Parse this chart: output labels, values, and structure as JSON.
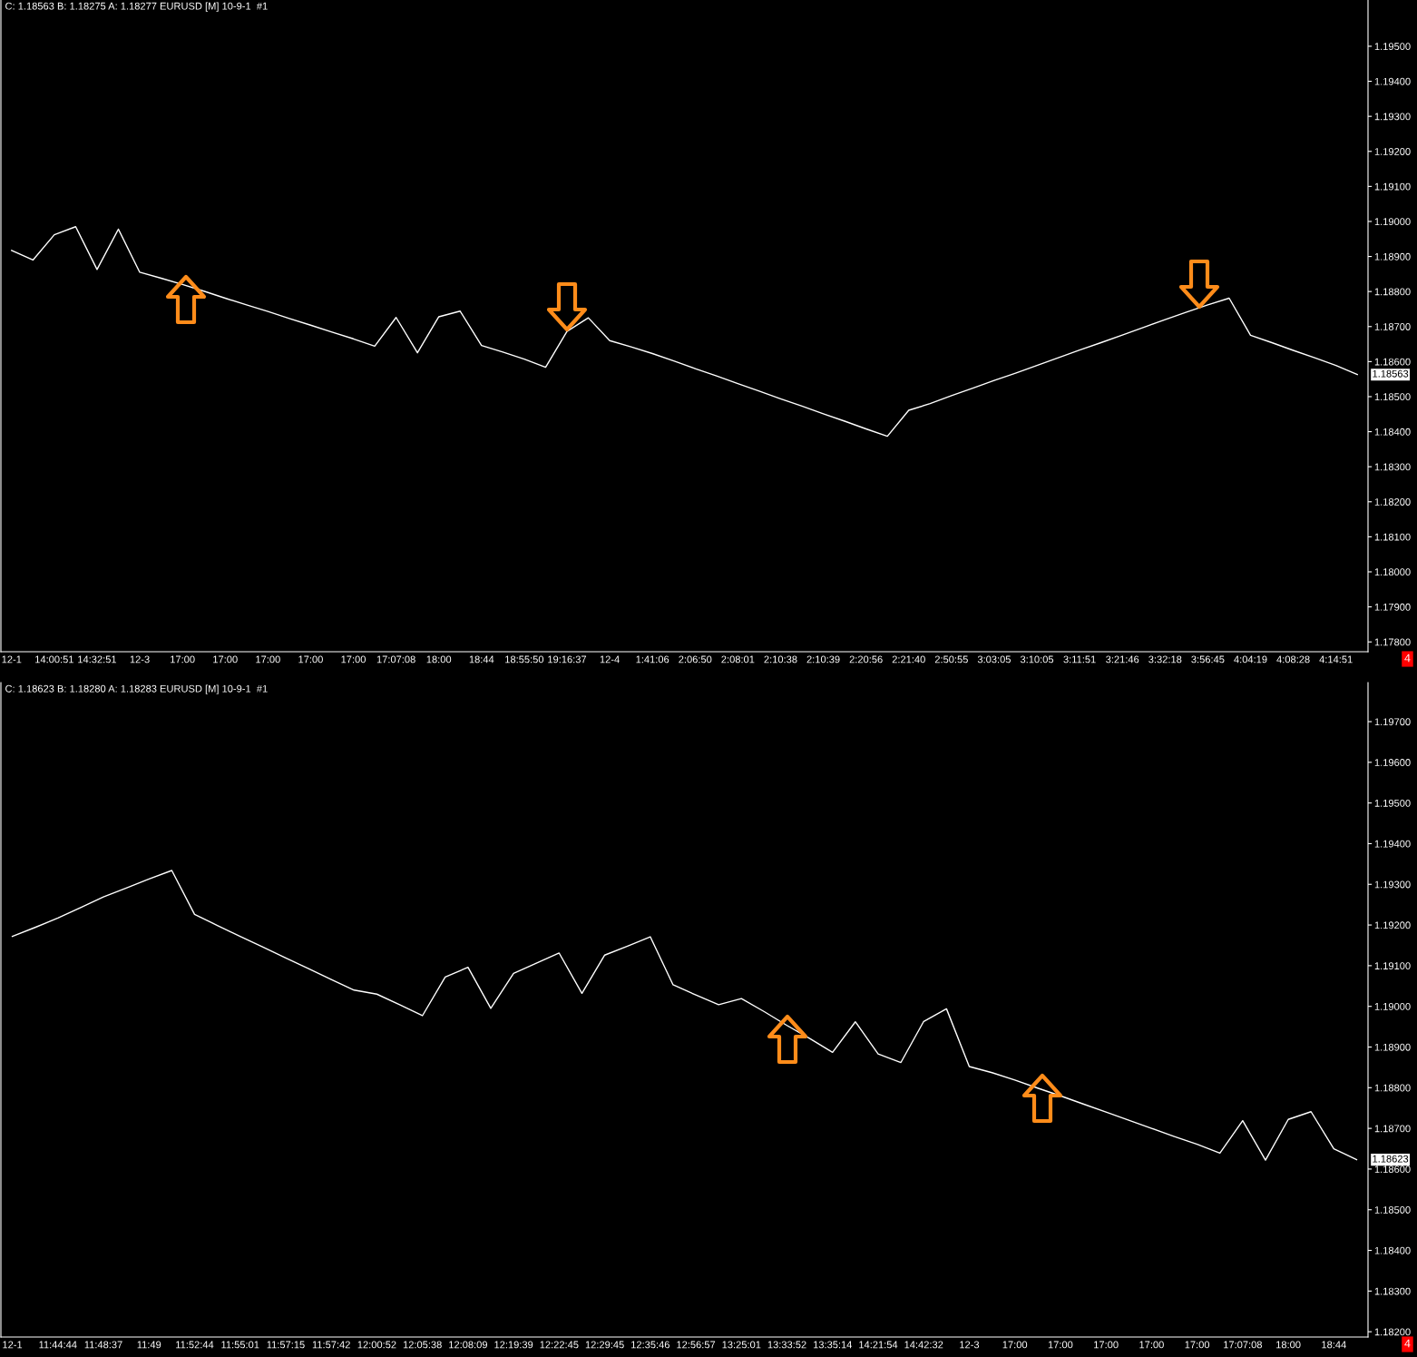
{
  "chart_data": [
    {
      "type": "line",
      "title": "C: 1.18563 B: 1.18275 A: 1.18277 EURUSD [M] 10-9-1  #1",
      "color": "#ffffff",
      "marker": "none",
      "line_style": "solid",
      "legend": false,
      "grid": false,
      "categories": [
        "12-1",
        null,
        "14:00:51",
        null,
        "14:32:51",
        null,
        "12-3",
        null,
        "17:00",
        null,
        "17:00",
        null,
        "17:00",
        null,
        "17:00",
        null,
        "17:00",
        null,
        "17:07:08",
        null,
        "18:00",
        null,
        "18:44",
        null,
        "18:55:50",
        null,
        "19:16:37",
        null,
        "12-4",
        null,
        "1:41:06",
        null,
        "2:06:50",
        null,
        "2:08:01",
        null,
        "2:10:38",
        null,
        "2:10:39",
        null,
        "2:20:56",
        null,
        "2:21:40",
        null,
        "2:50:55",
        null,
        "3:03:05",
        null,
        "3:10:05",
        null,
        "3:11:51",
        null,
        "3:21:46",
        null,
        "3:32:18",
        null,
        "3:56:45",
        null,
        "4:04:19",
        null,
        "4:08:28",
        null,
        "4:14:51",
        null
      ],
      "values": [
        1.18917,
        1.1889,
        1.18962,
        1.18985,
        1.18863,
        1.18978,
        1.18855,
        1.18838,
        1.1882,
        1.18801,
        1.18781,
        1.18762,
        1.18743,
        1.18723,
        1.18704,
        1.18684,
        1.18665,
        1.18644,
        1.18726,
        1.18625,
        1.18728,
        1.18744,
        1.18646,
        1.18627,
        1.18607,
        1.18584,
        1.18686,
        1.18725,
        1.1866,
        1.18642,
        1.18623,
        1.18602,
        1.1858,
        1.18559,
        1.18537,
        1.18516,
        1.18494,
        1.18473,
        1.18451,
        1.1843,
        1.18408,
        1.18387,
        1.18461,
        1.1848,
        1.18503,
        1.18524,
        1.18546,
        1.18567,
        1.18589,
        1.18611,
        1.18633,
        1.18654,
        1.18676,
        1.18698,
        1.1872,
        1.18741,
        1.18762,
        1.18781,
        1.18675,
        1.18654,
        1.18632,
        1.18611,
        1.18589,
        1.18563
      ],
      "ylim": [
        1.17772,
        1.19632
      ],
      "yticks": [
        {
          "value": 1.178,
          "label": "1.17800"
        },
        {
          "value": 1.179,
          "label": "1.17900"
        },
        {
          "value": 1.18,
          "label": "1.18000"
        },
        {
          "value": 1.181,
          "label": "1.18100"
        },
        {
          "value": 1.182,
          "label": "1.18200"
        },
        {
          "value": 1.183,
          "label": "1.18300"
        },
        {
          "value": 1.184,
          "label": "1.18400"
        },
        {
          "value": 1.185,
          "label": "1.18500"
        },
        {
          "value": 1.186,
          "label": "1.18600"
        },
        {
          "value": 1.187,
          "label": "1.18700"
        },
        {
          "value": 1.188,
          "label": "1.18800"
        },
        {
          "value": 1.189,
          "label": "1.18900"
        },
        {
          "value": 1.19,
          "label": "1.19000"
        },
        {
          "value": 1.191,
          "label": "1.19100"
        },
        {
          "value": 1.192,
          "label": "1.19200"
        },
        {
          "value": 1.193,
          "label": "1.19300"
        },
        {
          "value": 1.194,
          "label": "1.19400"
        },
        {
          "value": 1.195,
          "label": "1.19500"
        }
      ],
      "annotations": [
        "1.18563",
        "4"
      ]
    },
    {
      "type": "line",
      "title": "C: 1.18623 B: 1.18280 A: 1.18283 EURUSD [M] 10-9-1  #1",
      "color": "#ffffff",
      "marker": "none",
      "line_style": "solid",
      "legend": false,
      "grid": false,
      "categories": [
        "12-1",
        null,
        "11:44:44",
        null,
        "11:48:37",
        null,
        "11:49",
        null,
        "11:52:44",
        null,
        "11:55:01",
        null,
        "11:57:15",
        null,
        "11:57:42",
        null,
        "12:00:52",
        null,
        "12:05:38",
        null,
        "12:08:09",
        null,
        "12:19:39",
        null,
        "12:22:45",
        null,
        "12:29:45",
        null,
        "12:35:46",
        null,
        "12:56:57",
        null,
        "13:25:01",
        null,
        "13:33:52",
        null,
        "13:35:14",
        null,
        "14:21:54",
        null,
        "14:42:32",
        null,
        "12-3",
        null,
        "17:00",
        null,
        "17:00",
        null,
        "17:00",
        null,
        "17:00",
        null,
        "17:00",
        null,
        "17:07:08",
        null,
        "18:00",
        null,
        "18:44",
        null
      ],
      "values": [
        1.19172,
        1.19194,
        1.19217,
        1.19243,
        1.19269,
        1.19291,
        1.19313,
        1.19334,
        1.19226,
        1.19199,
        1.19172,
        1.19146,
        1.19119,
        1.19093,
        1.19066,
        1.1904,
        1.1903,
        1.19004,
        1.18977,
        1.19072,
        1.19096,
        1.18995,
        1.19081,
        1.19106,
        1.19131,
        1.19032,
        1.19126,
        1.19148,
        1.19171,
        1.19053,
        1.19028,
        1.19004,
        1.19019,
        1.18987,
        1.18953,
        1.18921,
        1.18887,
        1.18962,
        1.18883,
        1.18862,
        1.18963,
        1.18994,
        1.18852,
        1.18837,
        1.18819,
        1.18799,
        1.1878,
        1.1876,
        1.1874,
        1.1872,
        1.187,
        1.1868,
        1.18661,
        1.18639,
        1.18719,
        1.18622,
        1.18722,
        1.18741,
        1.1865,
        1.18623
      ],
      "ylim": [
        1.18187,
        1.19796
      ],
      "yticks": [
        {
          "value": 1.182,
          "label": "1.18200"
        },
        {
          "value": 1.183,
          "label": "1.18300"
        },
        {
          "value": 1.184,
          "label": "1.18400"
        },
        {
          "value": 1.185,
          "label": "1.18500"
        },
        {
          "value": 1.186,
          "label": "1.18600"
        },
        {
          "value": 1.187,
          "label": "1.18700"
        },
        {
          "value": 1.188,
          "label": "1.18800"
        },
        {
          "value": 1.189,
          "label": "1.18900"
        },
        {
          "value": 1.19,
          "label": "1.19000"
        },
        {
          "value": 1.191,
          "label": "1.19100"
        },
        {
          "value": 1.192,
          "label": "1.19200"
        },
        {
          "value": 1.193,
          "label": "1.19300"
        },
        {
          "value": 1.194,
          "label": "1.19400"
        },
        {
          "value": 1.195,
          "label": "1.19500"
        },
        {
          "value": 1.196,
          "label": "1.19600"
        },
        {
          "value": 1.197,
          "label": "1.19700"
        }
      ],
      "annotations": [
        "1.18623",
        "4"
      ]
    }
  ]
}
